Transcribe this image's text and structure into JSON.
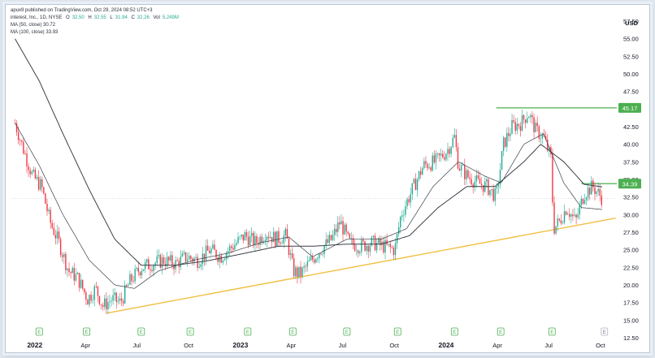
{
  "header": {
    "published": "apux9 published on TradingView.com, Oct 29, 2024 08:52 UTC+3",
    "symbol": "interest, Inc., 1D, NYSE",
    "open_label": "O",
    "open": "32.50",
    "high_label": "H",
    "high": "32.55",
    "low_label": "L",
    "low": "31.94",
    "close_label": "C",
    "close": "32.26",
    "vol_label": "Vol",
    "vol": "5.249M",
    "ma50": "MA (50, close) 30.72",
    "ma100": "MA (100, close) 33.93"
  },
  "currency": "USD",
  "colors": {
    "up": "#22ab94",
    "down": "#f23645",
    "ma": "#3b3f47",
    "resistance": "#4caf50",
    "support": "#f0c040",
    "earnings_badge": "#4caf50"
  },
  "chart_data": {
    "type": "candlestick",
    "ylim": [
      12.5,
      57.5
    ],
    "yticks": [
      "57.50",
      "55.00",
      "52.50",
      "50.00",
      "47.50",
      "45.00",
      "42.50",
      "40.00",
      "37.50",
      "35.00",
      "32.50",
      "30.00",
      "27.50",
      "25.00",
      "22.50",
      "20.00",
      "17.50",
      "15.00",
      "12.50"
    ],
    "xticks": [
      {
        "label": "2022",
        "year": true
      },
      {
        "label": "Apr"
      },
      {
        "label": "Jul"
      },
      {
        "label": "Oct"
      },
      {
        "label": "2023",
        "year": true
      },
      {
        "label": "Apr"
      },
      {
        "label": "Jul"
      },
      {
        "label": "Oct"
      },
      {
        "label": "2024",
        "year": true
      },
      {
        "label": "Apr"
      },
      {
        "label": "Jul"
      },
      {
        "label": "Oct"
      }
    ],
    "price_keypoints": [
      [
        "2021-12-20",
        43.0
      ],
      [
        "2022-01-05",
        39.0
      ],
      [
        "2022-01-20",
        35.5
      ],
      [
        "2022-02-05",
        34.0
      ],
      [
        "2022-02-20",
        29.0
      ],
      [
        "2022-03-08",
        26.0
      ],
      [
        "2022-03-25",
        22.0
      ],
      [
        "2022-04-10",
        21.0
      ],
      [
        "2022-04-28",
        18.0
      ],
      [
        "2022-05-12",
        19.5
      ],
      [
        "2022-05-25",
        17.0
      ],
      [
        "2022-06-10",
        18.0
      ],
      [
        "2022-06-25",
        17.5
      ],
      [
        "2022-07-12",
        20.5
      ],
      [
        "2022-08-01",
        22.5
      ],
      [
        "2022-08-20",
        23.0
      ],
      [
        "2022-09-10",
        23.5
      ],
      [
        "2022-10-01",
        23.0
      ],
      [
        "2022-10-20",
        24.0
      ],
      [
        "2022-11-10",
        23.5
      ],
      [
        "2022-12-01",
        25.0
      ],
      [
        "2022-12-20",
        24.0
      ],
      [
        "2023-01-10",
        25.5
      ],
      [
        "2023-02-01",
        27.0
      ],
      [
        "2023-02-20",
        26.0
      ],
      [
        "2023-03-10",
        27.5
      ],
      [
        "2023-03-28",
        26.5
      ],
      [
        "2023-04-15",
        27.0
      ],
      [
        "2023-04-28",
        22.0
      ],
      [
        "2023-05-10",
        21.5
      ],
      [
        "2023-05-25",
        23.0
      ],
      [
        "2023-06-15",
        25.0
      ],
      [
        "2023-07-05",
        26.5
      ],
      [
        "2023-07-20",
        29.0
      ],
      [
        "2023-08-05",
        26.0
      ],
      [
        "2023-08-25",
        25.5
      ],
      [
        "2023-09-15",
        26.0
      ],
      [
        "2023-10-05",
        25.5
      ],
      [
        "2023-10-25",
        25.0
      ],
      [
        "2023-11-05",
        30.0
      ],
      [
        "2023-11-25",
        33.5
      ],
      [
        "2023-12-15",
        37.0
      ],
      [
        "2024-01-05",
        37.5
      ],
      [
        "2024-01-25",
        39.0
      ],
      [
        "2024-02-08",
        41.0
      ],
      [
        "2024-02-15",
        37.0
      ],
      [
        "2024-03-01",
        35.5
      ],
      [
        "2024-03-20",
        34.5
      ],
      [
        "2024-04-05",
        34.0
      ],
      [
        "2024-04-22",
        32.5
      ],
      [
        "2024-05-05",
        40.0
      ],
      [
        "2024-05-20",
        42.5
      ],
      [
        "2024-06-05",
        43.0
      ],
      [
        "2024-06-18",
        44.5
      ],
      [
        "2024-07-01",
        42.0
      ],
      [
        "2024-07-15",
        41.0
      ],
      [
        "2024-07-28",
        38.0
      ],
      [
        "2024-08-02",
        28.0
      ],
      [
        "2024-08-12",
        29.0
      ],
      [
        "2024-08-25",
        31.0
      ],
      [
        "2024-09-10",
        29.0
      ],
      [
        "2024-09-25",
        33.0
      ],
      [
        "2024-10-10",
        34.0
      ],
      [
        "2024-10-28",
        32.26
      ]
    ],
    "ma50_keypoints": [
      [
        "2021-12-20",
        43.0
      ],
      [
        "2022-02-01",
        37.0
      ],
      [
        "2022-03-15",
        30.0
      ],
      [
        "2022-05-01",
        23.5
      ],
      [
        "2022-06-15",
        20.0
      ],
      [
        "2022-07-20",
        19.5
      ],
      [
        "2022-09-01",
        22.0
      ],
      [
        "2022-11-01",
        23.5
      ],
      [
        "2023-01-01",
        24.5
      ],
      [
        "2023-03-01",
        26.0
      ],
      [
        "2023-04-20",
        26.8
      ],
      [
        "2023-06-01",
        24.0
      ],
      [
        "2023-08-01",
        26.5
      ],
      [
        "2023-10-01",
        26.5
      ],
      [
        "2023-11-15",
        28.0
      ],
      [
        "2024-01-01",
        34.0
      ],
      [
        "2024-02-15",
        37.5
      ],
      [
        "2024-04-01",
        35.5
      ],
      [
        "2024-05-01",
        34.5
      ],
      [
        "2024-06-10",
        40.0
      ],
      [
        "2024-07-15",
        41.5
      ],
      [
        "2024-08-20",
        34.5
      ],
      [
        "2024-09-20",
        31.0
      ],
      [
        "2024-10-28",
        30.72
      ]
    ],
    "ma100_keypoints": [
      [
        "2021-12-20",
        55.0
      ],
      [
        "2022-02-01",
        49.0
      ],
      [
        "2022-03-15",
        41.5
      ],
      [
        "2022-05-01",
        33.5
      ],
      [
        "2022-06-15",
        26.5
      ],
      [
        "2022-08-01",
        22.8
      ],
      [
        "2022-10-01",
        22.8
      ],
      [
        "2022-12-01",
        23.5
      ],
      [
        "2023-02-01",
        24.5
      ],
      [
        "2023-04-01",
        25.5
      ],
      [
        "2023-06-01",
        25.5
      ],
      [
        "2023-08-01",
        25.8
      ],
      [
        "2023-10-01",
        25.8
      ],
      [
        "2023-11-20",
        27.0
      ],
      [
        "2024-01-10",
        31.0
      ],
      [
        "2024-03-01",
        34.0
      ],
      [
        "2024-04-20",
        34.0
      ],
      [
        "2024-06-10",
        37.5
      ],
      [
        "2024-07-10",
        40.0
      ],
      [
        "2024-08-20",
        37.5
      ],
      [
        "2024-09-25",
        34.3
      ],
      [
        "2024-10-28",
        33.93
      ]
    ],
    "resistance": {
      "value": 45.17,
      "label": "45.17",
      "start": "2024-04-22"
    },
    "ma_level": {
      "value": 34.39,
      "label": "34.39",
      "start": "2024-09-20"
    },
    "support_line": [
      [
        "2022-06-01",
        16.0
      ],
      [
        "2024-11-20",
        29.5
      ]
    ],
    "earnings_dates": [
      "2022-02-01",
      "2022-04-26",
      "2022-08-01",
      "2022-10-27",
      "2023-02-06",
      "2023-04-27",
      "2023-08-01",
      "2023-10-30",
      "2024-02-08",
      "2024-04-30",
      "2024-07-30",
      "2024-10-31"
    ],
    "earnings_label": "E",
    "current_price": 32.26
  }
}
